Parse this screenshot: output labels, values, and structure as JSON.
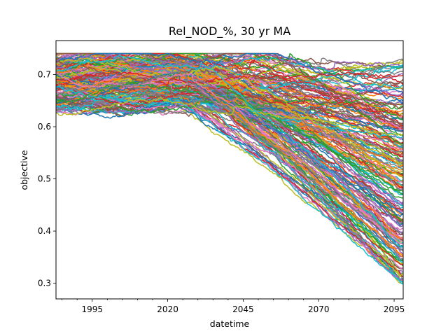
{
  "chart_data": {
    "type": "line",
    "title": "Rel_NOD_%, 30 yr MA",
    "xlabel": "datetime",
    "ylabel": "objective",
    "xlim": [
      1983,
      2098
    ],
    "ylim": [
      0.27,
      0.765
    ],
    "x_tick_labels": [
      "1995",
      "2020",
      "2045",
      "2070",
      "2095"
    ],
    "y_tick_labels": [
      "0.3",
      "0.4",
      "0.5",
      "0.6",
      "0.7"
    ],
    "grid": false,
    "legend": "none",
    "ensemble": {
      "description_of_shape": "stable near 0.62-0.74 until ~2020, then fanning out downward",
      "early_band": [
        0.61,
        0.74
      ],
      "end_band": [
        0.29,
        0.74
      ],
      "decline_start_years": [
        2020,
        2085
      ]
    },
    "colors": [
      "#1f77b4",
      "#ff7f0e",
      "#2ca02c",
      "#d62728",
      "#9467bd",
      "#8c564b",
      "#e377c2",
      "#7f7f7f",
      "#bcbd22",
      "#17becf"
    ]
  }
}
